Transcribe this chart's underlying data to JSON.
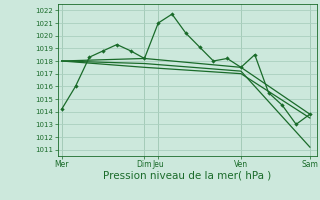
{
  "bg_color": "#cce8dc",
  "grid_color": "#aacfbf",
  "line_color": "#1a6b2a",
  "xlabel": "Pression niveau de la mer( hPa )",
  "xlabel_fontsize": 7.5,
  "ylim": [
    1010.5,
    1022.5
  ],
  "yticks": [
    1011,
    1012,
    1013,
    1014,
    1015,
    1016,
    1017,
    1018,
    1019,
    1020,
    1021,
    1022
  ],
  "xtick_labels": [
    "Mer",
    "Dim",
    "Jeu",
    "Ven",
    "Sam"
  ],
  "xtick_positions": [
    0,
    6,
    7,
    13,
    18
  ],
  "vlines": [
    0,
    6,
    7,
    13,
    18
  ],
  "series1_x": [
    0,
    1,
    2,
    3,
    4,
    5,
    6,
    7,
    8,
    9,
    10,
    11,
    12,
    13,
    14,
    15,
    16,
    17,
    18
  ],
  "series1_y": [
    1014.2,
    1016.0,
    1018.3,
    1018.8,
    1019.3,
    1018.8,
    1018.2,
    1021.0,
    1021.7,
    1020.2,
    1019.1,
    1018.0,
    1018.2,
    1017.5,
    1018.5,
    1015.5,
    1014.5,
    1013.0,
    1013.8
  ],
  "series2_x": [
    0,
    6,
    13,
    18
  ],
  "series2_y": [
    1018.0,
    1018.2,
    1017.5,
    1013.8
  ],
  "series3_x": [
    0,
    6,
    13,
    18
  ],
  "series3_y": [
    1018.0,
    1017.8,
    1017.2,
    1011.2
  ],
  "series4_x": [
    0,
    6,
    13,
    18
  ],
  "series4_y": [
    1018.0,
    1017.5,
    1017.0,
    1013.5
  ]
}
